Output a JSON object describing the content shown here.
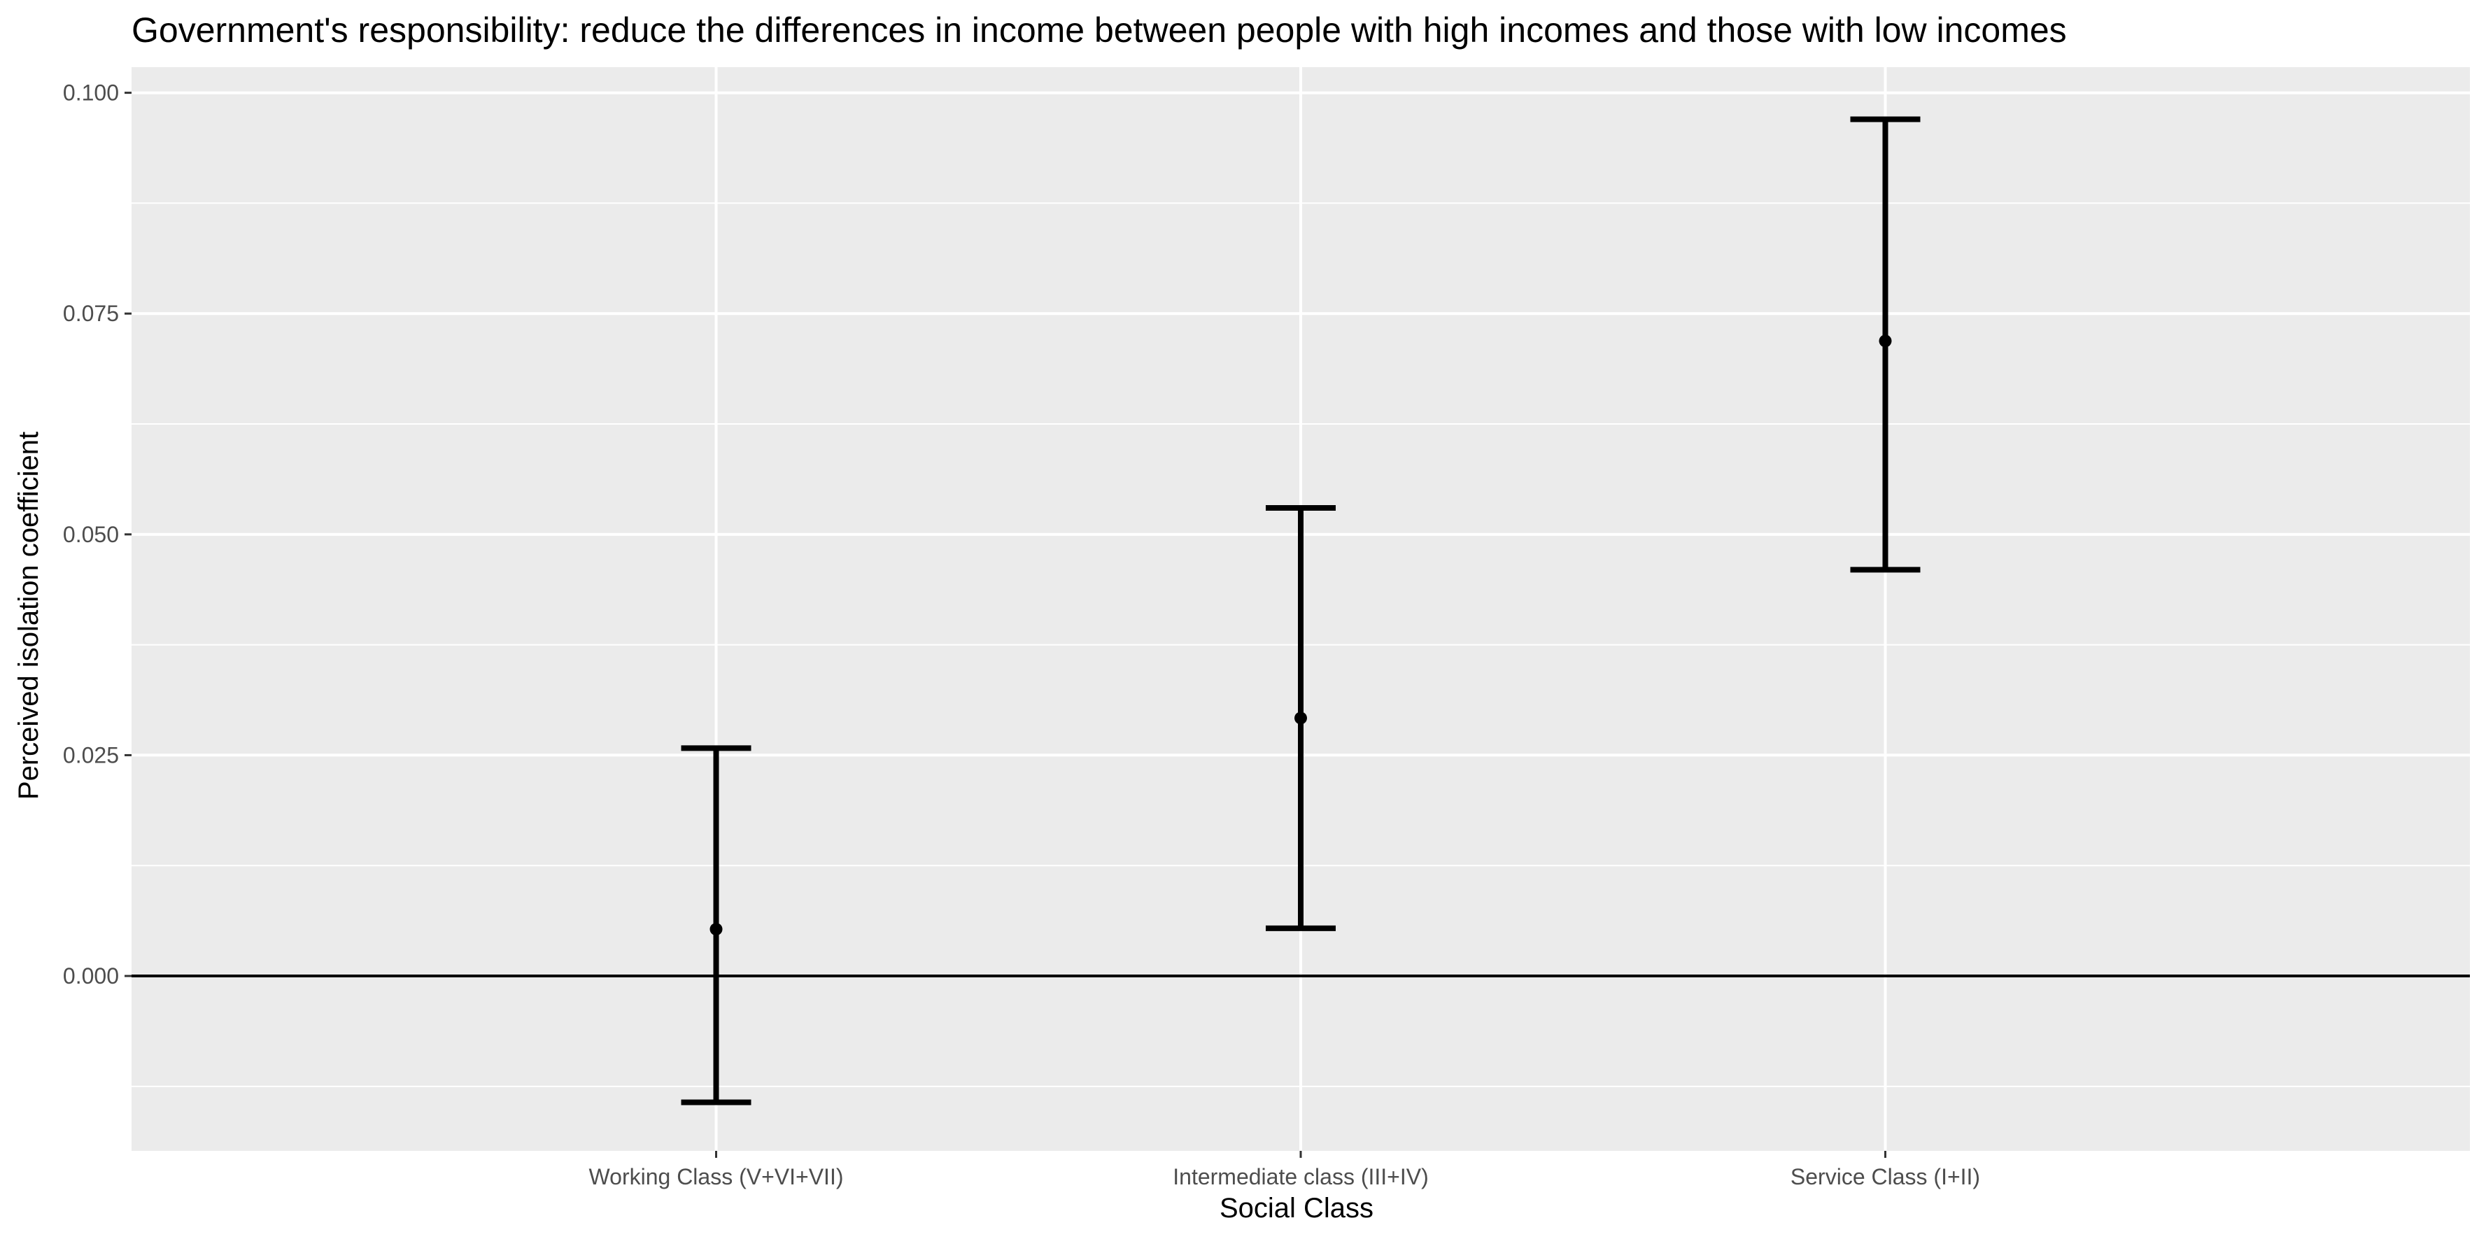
{
  "chart_data": {
    "type": "errorbar",
    "title": "Government's responsibility: reduce the differences in income between people with high incomes and those with low incomes",
    "xlabel": "Social Class",
    "ylabel": "Perceived isolation coefficient",
    "categories": [
      "Working Class (V+VI+VII)",
      "Intermediate class (III+IV)",
      "Service Class (I+II)"
    ],
    "estimate": [
      0.0053,
      0.0292,
      0.0719
    ],
    "lower": [
      -0.0143,
      0.0054,
      0.046
    ],
    "upper": [
      0.0258,
      0.053,
      0.097
    ],
    "ylim": [
      -0.0198,
      0.1029
    ],
    "yticks": [
      0,
      0.025,
      0.05,
      0.075,
      0.1
    ],
    "ytick_labels": [
      "0.000",
      "0.025",
      "0.050",
      "0.075",
      "0.100"
    ],
    "reference_line": 0,
    "grid": true,
    "colors": {
      "panel": "#ebebeb",
      "grid": "#ffffff",
      "marks": "#000000",
      "tick_text": "#4d4d4d"
    }
  }
}
